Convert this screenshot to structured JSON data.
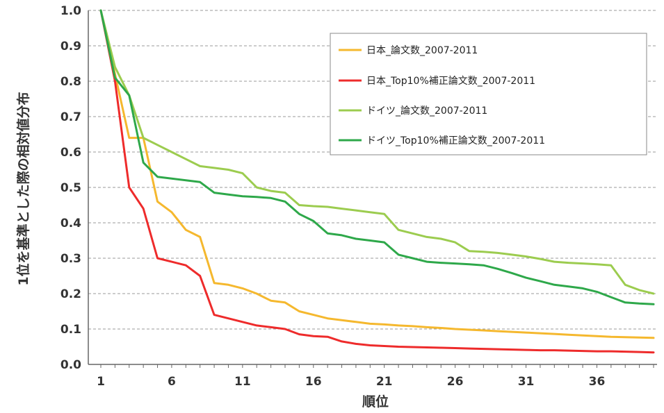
{
  "chart_data": {
    "type": "line",
    "xlabel": "順位",
    "ylabel": "1位を基準とした際の相対値分布",
    "xlim": [
      1,
      40
    ],
    "ylim": [
      0,
      1.0
    ],
    "x_ticks": [
      "1",
      "6",
      "11",
      "16",
      "21",
      "26",
      "31",
      "36"
    ],
    "y_ticks": [
      "0.0",
      "0.1",
      "0.2",
      "0.3",
      "0.4",
      "0.5",
      "0.6",
      "0.7",
      "0.8",
      "0.9",
      "1.0"
    ],
    "grid": true,
    "legend_position": "top-right",
    "x": [
      1,
      2,
      3,
      4,
      5,
      6,
      7,
      8,
      9,
      10,
      11,
      12,
      13,
      14,
      15,
      16,
      17,
      18,
      19,
      20,
      21,
      22,
      23,
      24,
      25,
      26,
      27,
      28,
      29,
      30,
      31,
      32,
      33,
      34,
      35,
      36,
      37,
      38,
      39,
      40
    ],
    "series": [
      {
        "name": "日本_論文数_2007-2011",
        "color": "#f5b82e",
        "values": [
          1.0,
          0.82,
          0.64,
          0.64,
          0.46,
          0.43,
          0.38,
          0.36,
          0.23,
          0.225,
          0.215,
          0.2,
          0.18,
          0.175,
          0.15,
          0.14,
          0.13,
          0.125,
          0.12,
          0.115,
          0.113,
          0.11,
          0.108,
          0.105,
          0.103,
          0.1,
          0.098,
          0.096,
          0.094,
          0.092,
          0.09,
          0.088,
          0.086,
          0.084,
          0.082,
          0.08,
          0.078,
          0.077,
          0.076,
          0.075
        ]
      },
      {
        "name": "日本_Top10%補正論文数_2007-2011",
        "color": "#ee2b2b",
        "values": [
          1.0,
          0.8,
          0.5,
          0.44,
          0.3,
          0.29,
          0.28,
          0.25,
          0.14,
          0.13,
          0.12,
          0.11,
          0.105,
          0.1,
          0.085,
          0.08,
          0.078,
          0.065,
          0.058,
          0.054,
          0.052,
          0.05,
          0.049,
          0.048,
          0.047,
          0.046,
          0.045,
          0.044,
          0.043,
          0.042,
          0.041,
          0.04,
          0.04,
          0.039,
          0.038,
          0.037,
          0.037,
          0.036,
          0.035,
          0.034
        ]
      },
      {
        "name": "ドイツ_論文数_2007-2011",
        "color": "#9ccc4f",
        "values": [
          1.0,
          0.84,
          0.76,
          0.64,
          0.62,
          0.6,
          0.58,
          0.56,
          0.555,
          0.55,
          0.54,
          0.5,
          0.49,
          0.485,
          0.45,
          0.447,
          0.445,
          0.44,
          0.435,
          0.43,
          0.425,
          0.38,
          0.37,
          0.36,
          0.355,
          0.345,
          0.32,
          0.318,
          0.315,
          0.31,
          0.305,
          0.298,
          0.29,
          0.287,
          0.285,
          0.283,
          0.28,
          0.225,
          0.21,
          0.2
        ]
      },
      {
        "name": "ドイツ_Top10%補正論文数_2007-2011",
        "color": "#2ea84a",
        "values": [
          1.0,
          0.81,
          0.76,
          0.57,
          0.53,
          0.525,
          0.52,
          0.515,
          0.485,
          0.48,
          0.475,
          0.473,
          0.47,
          0.46,
          0.425,
          0.405,
          0.37,
          0.365,
          0.355,
          0.35,
          0.345,
          0.31,
          0.3,
          0.29,
          0.287,
          0.285,
          0.283,
          0.28,
          0.27,
          0.258,
          0.245,
          0.235,
          0.225,
          0.22,
          0.215,
          0.205,
          0.19,
          0.175,
          0.172,
          0.17
        ]
      }
    ]
  }
}
